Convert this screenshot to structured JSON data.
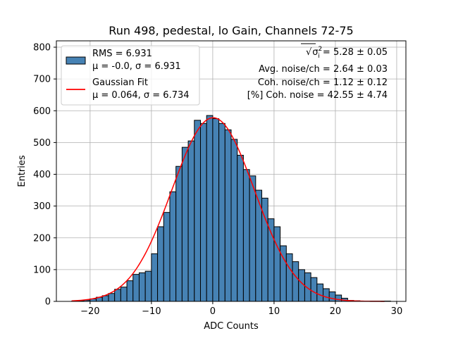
{
  "chart_data": {
    "type": "bar",
    "title": "Run 498, pedestal, lo Gain, Channels 72-75",
    "xlabel": "ADC Counts",
    "ylabel": "Entries",
    "xlim": [
      -25.5,
      31.5
    ],
    "ylim": [
      0,
      820
    ],
    "grid": true,
    "legend_placement": "top-left",
    "xticks": [
      -20,
      -10,
      0,
      10,
      20,
      30
    ],
    "yticks": [
      0,
      100,
      200,
      300,
      400,
      500,
      600,
      700,
      800
    ],
    "xtick_labels": [
      "−20",
      "−10",
      "0",
      "10",
      "20",
      "30"
    ],
    "ytick_labels": [
      "0",
      "100",
      "200",
      "300",
      "400",
      "500",
      "600",
      "700",
      "800"
    ],
    "bin_width": 1,
    "bin_left_edges": [
      -23,
      -22,
      -21,
      -20,
      -19,
      -18,
      -17,
      -16,
      -15,
      -14,
      -13,
      -12,
      -11,
      -10,
      -9,
      -8,
      -7,
      -6,
      -5,
      -4,
      -3,
      -2,
      -1,
      0,
      1,
      2,
      3,
      4,
      5,
      6,
      7,
      8,
      9,
      10,
      11,
      12,
      13,
      14,
      15,
      16,
      17,
      18,
      19,
      20,
      21,
      22,
      23,
      24,
      25,
      26,
      27,
      28
    ],
    "values": [
      1,
      2,
      4,
      8,
      13,
      18,
      25,
      38,
      45,
      65,
      85,
      90,
      95,
      150,
      235,
      280,
      345,
      425,
      485,
      505,
      570,
      560,
      585,
      575,
      560,
      540,
      510,
      460,
      415,
      395,
      350,
      325,
      260,
      235,
      175,
      150,
      125,
      100,
      90,
      75,
      55,
      40,
      30,
      20,
      10,
      3,
      2,
      1,
      1,
      1,
      1,
      1
    ],
    "series": [
      {
        "name": "RMS = 6.931",
        "name_line2": "μ = -0.0, σ = 6.931",
        "kind": "histogram",
        "color": "#4682b4"
      },
      {
        "name": "Gaussian Fit",
        "name_line2": "μ = 0.064, σ = 6.734",
        "kind": "line",
        "color": "#ff0000",
        "mu": 0.064,
        "sigma": 6.734,
        "amplitude": 578,
        "x_range": [
          -23,
          28
        ]
      }
    ],
    "annotations": [
      {
        "prefix": "√",
        "symbol": "σ",
        "sup": "2",
        "sub": "i",
        "text": " = 5.28 ± 0.05"
      },
      {
        "text": "Avg. noise/ch = 2.64 ± 0.03"
      },
      {
        "text": "Coh. noise/ch = 1.12 ± 0.12"
      },
      {
        "text": "[%] Coh. noise = 42.55 ± 4.74"
      }
    ]
  }
}
